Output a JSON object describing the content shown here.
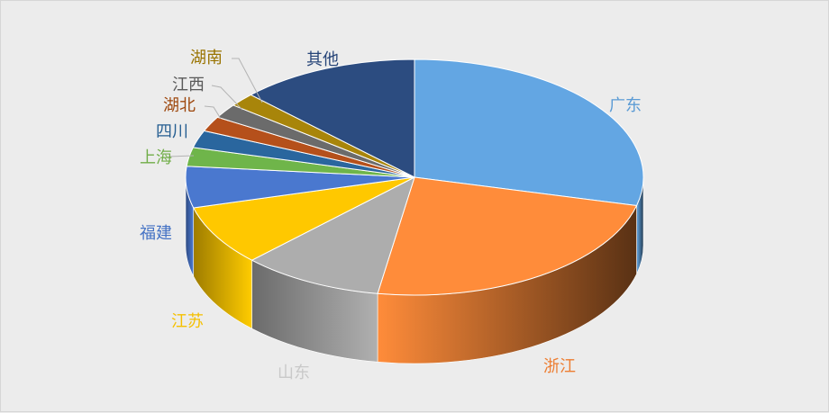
{
  "chart_data": {
    "type": "pie",
    "style": "3d",
    "title": "",
    "legend": "none",
    "slices": [
      {
        "label": "广东",
        "value": 28.0,
        "color": "#63a6e3",
        "label_color": "#5b9bd5"
      },
      {
        "label": "浙江",
        "value": 23.0,
        "color": "#ff8c3a",
        "label_color": "#ed7d31"
      },
      {
        "label": "山东",
        "value": 9.7,
        "color": "#adadad",
        "label_color": "#c9c9c9"
      },
      {
        "label": "江苏",
        "value": 8.0,
        "color": "#ffc800",
        "label_color": "#f5c000"
      },
      {
        "label": "福建",
        "value": 5.5,
        "color": "#4a78cf",
        "label_color": "#4472c4"
      },
      {
        "label": "上海",
        "value": 2.5,
        "color": "#6fb54a",
        "label_color": "#70ad47"
      },
      {
        "label": "四川",
        "value": 2.3,
        "color": "#2a669e",
        "label_color": "#255e91"
      },
      {
        "label": "湖北",
        "value": 2.0,
        "color": "#b5501b",
        "label_color": "#9e480e"
      },
      {
        "label": "江西",
        "value": 1.9,
        "color": "#6b6b6b",
        "label_color": "#595959"
      },
      {
        "label": "湖南",
        "value": 1.8,
        "color": "#a8850a",
        "label_color": "#997300"
      },
      {
        "label": "其他",
        "value": 12.3,
        "color": "#2c4c80",
        "label_color": "#264478"
      }
    ]
  }
}
